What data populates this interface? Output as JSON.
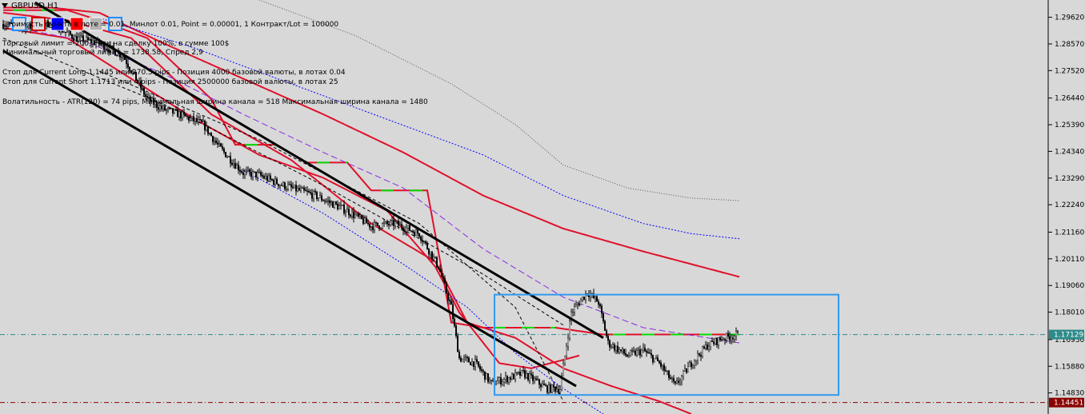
{
  "window": {
    "title": "GBPUSD,H1",
    "menu_icon": "triangle-down-icon"
  },
  "toolbar": {
    "swatches": [
      {
        "name": "outline-blue-swatch",
        "color": "#1e90ff",
        "filled": false
      },
      {
        "name": "outline-red-swatch",
        "color": "#d00000",
        "filled": false
      },
      {
        "name": "blue-swatch",
        "color": "#0000ff",
        "filled": true
      },
      {
        "name": "red-swatch",
        "color": "#ff0000",
        "filled": true
      },
      {
        "name": "gray-swatch",
        "color": "#b4b4b4",
        "filled": true
      },
      {
        "name": "outline-blue-swatch-2",
        "color": "#1e90ff",
        "filled": false
      }
    ]
  },
  "info": {
    "line1": "Стоимость пункта в лоте = 0.01,   Минлот 0.01,   Point = 0.00001,   1 Контракт/Lot = 100000",
    "line2": "Торговый лимит = 200,  Риск на сделку 100%,   в сумме 100$",
    "line3": "Минимальный торговый лимит = 1738.58,   Спред  2,9",
    "line4": "Стоп для Current Long  1.1445  или 270.5 pips -   Позиция 4000 базовой валюты,   в лотах 0.04",
    "line5": "Стоп для Current Short 1.1713  или 4 pips -  Позиция 2500000 базовой валюты,   в лотах 25",
    "line6": "Волатильность - ATR(120) = 74 pips,   Минимальная ширина канала = 518    Максимальная ширина канала = 1480"
  },
  "price_axis": {
    "ticks": [
      "1.29620",
      "1.28570",
      "1.27520",
      "1.26440",
      "1.25390",
      "1.24340",
      "1.23290",
      "1.22240",
      "1.21160",
      "1.20110",
      "1.19060",
      "1.18010",
      "1.16930",
      "1.15880",
      "1.14830"
    ]
  },
  "price_labels": [
    {
      "value": "1.17129",
      "price": 1.17129,
      "color": "#2e8b8b",
      "line_style": "dashdot"
    },
    {
      "value": "1.14451",
      "price": 1.14451,
      "color": "#8b0000",
      "line_style": "dashdot"
    }
  ],
  "colors": {
    "background": "#d8d8d8",
    "candles": "#000000",
    "regression_channel": "#000000",
    "ma_red": "#e0102a",
    "stop_line_red": "#e0102a",
    "stop_line_green": "#00e000",
    "purple_line": "#8a2be2",
    "blue_dotted": "#0000ff",
    "gray_dotted": "#555555",
    "box": "#3399ee"
  },
  "chart_data": {
    "type": "candlestick",
    "title": "GBPUSD,H1",
    "symbol": "GBPUSD",
    "timeframe": "H1",
    "ylim": [
      1.14,
      1.303
    ],
    "x_count": 460,
    "close_anchors": [
      [
        0,
        1.2935
      ],
      [
        15,
        1.292
      ],
      [
        30,
        1.294
      ],
      [
        45,
        1.288
      ],
      [
        60,
        1.286
      ],
      [
        75,
        1.281
      ],
      [
        90,
        1.264
      ],
      [
        100,
        1.26
      ],
      [
        110,
        1.258
      ],
      [
        125,
        1.254
      ],
      [
        135,
        1.245
      ],
      [
        150,
        1.235
      ],
      [
        160,
        1.234
      ],
      [
        175,
        1.23
      ],
      [
        195,
        1.226
      ],
      [
        215,
        1.22
      ],
      [
        230,
        1.214
      ],
      [
        245,
        1.215
      ],
      [
        260,
        1.211
      ],
      [
        272,
        1.198
      ],
      [
        280,
        1.182
      ],
      [
        285,
        1.162
      ],
      [
        295,
        1.16
      ],
      [
        305,
        1.152
      ],
      [
        325,
        1.156
      ],
      [
        340,
        1.15
      ],
      [
        348,
        1.15
      ],
      [
        355,
        1.18
      ],
      [
        365,
        1.188
      ],
      [
        372,
        1.184
      ],
      [
        378,
        1.168
      ],
      [
        390,
        1.163
      ],
      [
        400,
        1.165
      ],
      [
        410,
        1.16
      ],
      [
        420,
        1.151
      ],
      [
        430,
        1.16
      ],
      [
        440,
        1.167
      ],
      [
        450,
        1.17
      ],
      [
        460,
        1.1713
      ]
    ],
    "volatility": 0.0032,
    "series": [
      {
        "kind": "ma_red_upper",
        "color": "#e0102a",
        "points": [
          [
            0,
            1.3
          ],
          [
            30,
            1.3
          ],
          [
            60,
            1.298
          ],
          [
            100,
            1.286
          ],
          [
            150,
            1.272
          ],
          [
            200,
            1.258
          ],
          [
            250,
            1.243
          ],
          [
            300,
            1.226
          ],
          [
            350,
            1.213
          ],
          [
            400,
            1.204
          ],
          [
            460,
            1.194
          ]
        ]
      },
      {
        "kind": "ma_red_lower",
        "color": "#e0102a",
        "points": [
          [
            0,
            1.298
          ],
          [
            40,
            1.295
          ],
          [
            80,
            1.288
          ],
          [
            130,
            1.258
          ],
          [
            180,
            1.24
          ],
          [
            230,
            1.215
          ],
          [
            270,
            1.2
          ],
          [
            290,
            1.176
          ],
          [
            320,
            1.17
          ],
          [
            350,
            1.158
          ],
          [
            380,
            1.151
          ],
          [
            410,
            1.145
          ],
          [
            430,
            1.14
          ]
        ]
      },
      {
        "kind": "ma_red_fast",
        "color": "#e0102a",
        "points": [
          [
            0,
            1.292
          ],
          [
            40,
            1.288
          ],
          [
            80,
            1.272
          ],
          [
            120,
            1.256
          ],
          [
            160,
            1.242
          ],
          [
            200,
            1.233
          ],
          [
            240,
            1.22
          ],
          [
            270,
            1.198
          ],
          [
            285,
            1.18
          ],
          [
            310,
            1.16
          ],
          [
            330,
            1.158
          ],
          [
            360,
            1.163
          ]
        ]
      },
      {
        "kind": "stop_line",
        "color": "#e0102a",
        "points": [
          [
            0,
            1.299
          ],
          [
            40,
            1.299
          ],
          [
            60,
            1.295
          ],
          [
            90,
            1.288
          ],
          [
            110,
            1.276
          ],
          [
            130,
            1.264
          ],
          [
            145,
            1.246
          ],
          [
            170,
            1.246
          ],
          [
            190,
            1.239
          ],
          [
            215,
            1.239
          ],
          [
            230,
            1.228
          ],
          [
            265,
            1.228
          ],
          [
            280,
            1.176
          ],
          [
            300,
            1.174
          ],
          [
            345,
            1.174
          ],
          [
            375,
            1.1713
          ],
          [
            460,
            1.1713
          ]
        ]
      },
      {
        "kind": "purple_dashed",
        "color": "#8a2be2",
        "points": [
          [
            0,
            1.293
          ],
          [
            50,
            1.287
          ],
          [
            100,
            1.274
          ],
          [
            150,
            1.258
          ],
          [
            200,
            1.243
          ],
          [
            250,
            1.229
          ],
          [
            300,
            1.205
          ],
          [
            350,
            1.186
          ],
          [
            400,
            1.174
          ],
          [
            440,
            1.17
          ],
          [
            460,
            1.168
          ]
        ]
      },
      {
        "kind": "blue_dotted",
        "color": "#0000ff",
        "points": [
          [
            60,
            1.296
          ],
          [
            120,
            1.284
          ],
          [
            180,
            1.27
          ],
          [
            240,
            1.256
          ],
          [
            300,
            1.242
          ],
          [
            350,
            1.226
          ],
          [
            400,
            1.215
          ],
          [
            430,
            1.211
          ],
          [
            460,
            1.209
          ]
        ]
      },
      {
        "kind": "blue_dotted_low",
        "color": "#0000ff",
        "points": [
          [
            150,
            1.236
          ],
          [
            200,
            1.219
          ],
          [
            250,
            1.199
          ],
          [
            290,
            1.182
          ],
          [
            320,
            1.164
          ],
          [
            350,
            1.15
          ],
          [
            375,
            1.14
          ]
        ]
      },
      {
        "kind": "gray_dotted",
        "color": "#555555",
        "points": [
          [
            160,
            1.303
          ],
          [
            220,
            1.289
          ],
          [
            280,
            1.27
          ],
          [
            320,
            1.254
          ],
          [
            350,
            1.238
          ],
          [
            390,
            1.229
          ],
          [
            430,
            1.225
          ],
          [
            460,
            1.224
          ]
        ]
      },
      {
        "kind": "black_dashed_mid",
        "color": "#000000",
        "points": [
          [
            0,
            1.288
          ],
          [
            100,
            1.262
          ],
          [
            200,
            1.23
          ],
          [
            300,
            1.195
          ],
          [
            350,
            1.175
          ]
        ]
      },
      {
        "kind": "black_dashed_low",
        "color": "#000000",
        "points": [
          [
            60,
            1.275
          ],
          [
            160,
            1.248
          ],
          [
            260,
            1.215
          ],
          [
            320,
            1.182
          ],
          [
            350,
            1.145
          ]
        ]
      }
    ],
    "channel": {
      "upper": [
        [
          20,
          1.302
        ],
        [
          375,
          1.17
        ]
      ],
      "lower": [
        [
          0,
          1.283
        ],
        [
          358,
          1.151
        ]
      ]
    },
    "range_box": {
      "x_start": 307,
      "x_end": 522,
      "price_top": 1.187,
      "price_bottom": 1.1475
    },
    "stop_segment": {
      "x_start": 307,
      "x_end": 460,
      "price": 1.1713
    }
  }
}
